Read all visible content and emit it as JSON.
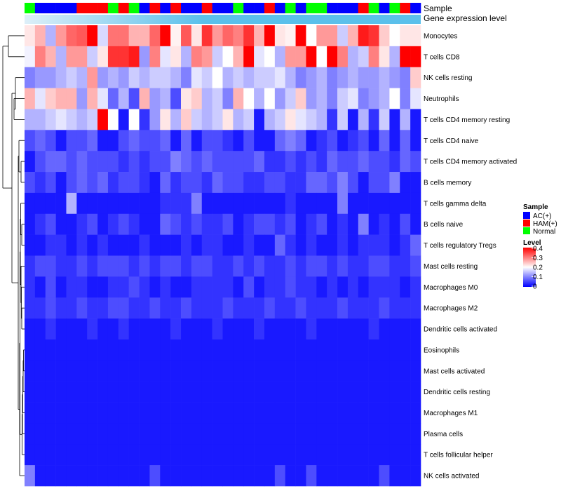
{
  "chart_data": {
    "type": "heatmap",
    "title": "",
    "column_annotations": [
      {
        "label": "Sample"
      },
      {
        "label": "Gene expression level"
      }
    ],
    "sample_groups": [
      {
        "name": "AC(+)",
        "color": "#0000FF"
      },
      {
        "name": "HAM(+)",
        "color": "#FF0000"
      },
      {
        "name": "Normal",
        "color": "#00FF00"
      }
    ],
    "sample_annotation": [
      "Normal",
      "AC(+)",
      "AC(+)",
      "AC(+)",
      "AC(+)",
      "HAM(+)",
      "HAM(+)",
      "HAM(+)",
      "Normal",
      "HAM(+)",
      "Normal",
      "AC(+)",
      "HAM(+)",
      "AC(+)",
      "HAM(+)",
      "AC(+)",
      "AC(+)",
      "HAM(+)",
      "AC(+)",
      "AC(+)",
      "Normal",
      "AC(+)",
      "AC(+)",
      "HAM(+)",
      "AC(+)",
      "Normal",
      "AC(+)",
      "Normal",
      "Normal",
      "AC(+)",
      "AC(+)",
      "AC(+)",
      "HAM(+)",
      "Normal",
      "AC(+)",
      "Normal",
      "HAM(+)",
      "AC(+)"
    ],
    "expression_level_color": "#5BC0EB",
    "expression_level_gradient_start": "#DDEFF8",
    "rows": [
      "Monocytes",
      "T cells CD8",
      "NK cells resting",
      "Neutrophils",
      "T cells CD4 memory resting",
      "T cells CD4 naive",
      "T cells CD4 memory activated",
      "B cells memory",
      "T cells gamma delta",
      "B cells naive",
      "T cells regulatory  Tregs",
      "Mast cells resting",
      "Macrophages M0",
      "Macrophages M2",
      "Dendritic cells activated",
      "Eosinophils",
      "Mast cells activated",
      "Dendritic cells resting",
      "Macrophages M1",
      "Plasma cells",
      "T cells follicular helper",
      "NK cells activated"
    ],
    "values": [
      [
        0.22,
        0.26,
        0.14,
        0.28,
        0.32,
        0.33,
        0.4,
        0.17,
        0.31,
        0.31,
        0.26,
        0.26,
        0.32,
        0.4,
        0.21,
        0.33,
        0.22,
        0.36,
        0.28,
        0.32,
        0.3,
        0.36,
        0.26,
        0.42,
        0.22,
        0.21,
        0.4,
        0.2,
        0.28,
        0.28,
        0.16,
        0.26,
        0.38,
        0.36,
        0.24,
        0.2,
        0.22,
        0.22
      ],
      [
        0.19,
        0.3,
        0.26,
        0.14,
        0.28,
        0.28,
        0.16,
        0.22,
        0.36,
        0.36,
        0.38,
        0.12,
        0.3,
        0.18,
        0.22,
        0.14,
        0.3,
        0.28,
        0.16,
        0.2,
        0.26,
        0.4,
        0.18,
        0.2,
        0.14,
        0.28,
        0.28,
        0.4,
        0.2,
        0.42,
        0.3,
        0.14,
        0.16,
        0.3,
        0.22,
        0.14,
        0.42,
        0.42
      ],
      [
        0.1,
        0.12,
        0.12,
        0.14,
        0.16,
        0.14,
        0.28,
        0.12,
        0.14,
        0.12,
        0.16,
        0.14,
        0.16,
        0.16,
        0.14,
        0.1,
        0.18,
        0.16,
        0.2,
        0.14,
        0.16,
        0.14,
        0.16,
        0.16,
        0.18,
        0.14,
        0.1,
        0.12,
        0.14,
        0.1,
        0.12,
        0.14,
        0.12,
        0.12,
        0.14,
        0.12,
        0.1,
        0.24
      ],
      [
        0.26,
        0.18,
        0.24,
        0.26,
        0.26,
        0.12,
        0.26,
        0.18,
        0.08,
        0.14,
        0.06,
        0.26,
        0.12,
        0.14,
        0.06,
        0.22,
        0.24,
        0.14,
        0.16,
        0.1,
        0.26,
        0.2,
        0.14,
        0.2,
        0.12,
        0.16,
        0.24,
        0.12,
        0.14,
        0.1,
        0.16,
        0.18,
        0.1,
        0.12,
        0.14,
        0.2,
        0.1,
        0.18
      ],
      [
        0.14,
        0.14,
        0.16,
        0.18,
        0.16,
        0.14,
        0.16,
        0.4,
        0.2,
        0.02,
        0.2,
        0.04,
        0.12,
        0.22,
        0.14,
        0.24,
        0.16,
        0.14,
        0.16,
        0.22,
        0.14,
        0.16,
        0.02,
        0.14,
        0.16,
        0.22,
        0.18,
        0.16,
        0.14,
        0.04,
        0.16,
        0.02,
        0.14,
        0.04,
        0.16,
        0.02,
        0.14,
        0.02
      ],
      [
        0.06,
        0.08,
        0.06,
        0.02,
        0.06,
        0.06,
        0.08,
        0.02,
        0.02,
        0.06,
        0.08,
        0.06,
        0.06,
        0.08,
        0.02,
        0.08,
        0.02,
        0.06,
        0.06,
        0.04,
        0.02,
        0.06,
        0.02,
        0.02,
        0.08,
        0.1,
        0.08,
        0.02,
        0.04,
        0.06,
        0.02,
        0.04,
        0.06,
        0.02,
        0.08,
        0.02,
        0.08,
        0.02
      ],
      [
        0.02,
        0.06,
        0.08,
        0.08,
        0.06,
        0.08,
        0.06,
        0.06,
        0.06,
        0.04,
        0.06,
        0.04,
        0.06,
        0.06,
        0.1,
        0.08,
        0.06,
        0.08,
        0.06,
        0.06,
        0.06,
        0.06,
        0.08,
        0.04,
        0.04,
        0.06,
        0.04,
        0.06,
        0.04,
        0.08,
        0.06,
        0.06,
        0.08,
        0.06,
        0.06,
        0.04,
        0.08,
        0.06
      ],
      [
        0.06,
        0.04,
        0.06,
        0.02,
        0.06,
        0.08,
        0.06,
        0.08,
        0.04,
        0.06,
        0.06,
        0.04,
        0.02,
        0.08,
        0.04,
        0.06,
        0.06,
        0.04,
        0.08,
        0.06,
        0.06,
        0.04,
        0.04,
        0.06,
        0.06,
        0.04,
        0.04,
        0.08,
        0.08,
        0.06,
        0.1,
        0.06,
        0.02,
        0.06,
        0.06,
        0.1,
        0.02,
        0.02
      ],
      [
        0.02,
        0.02,
        0.02,
        0.02,
        0.14,
        0.02,
        0.02,
        0.02,
        0.02,
        0.02,
        0.02,
        0.02,
        0.02,
        0.04,
        0.04,
        0.04,
        0.1,
        0.02,
        0.02,
        0.02,
        0.02,
        0.02,
        0.02,
        0.02,
        0.02,
        0.04,
        0.02,
        0.02,
        0.02,
        0.02,
        0.1,
        0.02,
        0.02,
        0.02,
        0.02,
        0.02,
        0.02,
        0.02
      ],
      [
        0.02,
        0.04,
        0.06,
        0.02,
        0.02,
        0.04,
        0.06,
        0.02,
        0.04,
        0.06,
        0.04,
        0.02,
        0.02,
        0.08,
        0.06,
        0.04,
        0.06,
        0.04,
        0.04,
        0.06,
        0.02,
        0.04,
        0.06,
        0.06,
        0.04,
        0.06,
        0.02,
        0.04,
        0.06,
        0.02,
        0.04,
        0.02,
        0.1,
        0.02,
        0.04,
        0.02,
        0.06,
        0.02
      ],
      [
        0.02,
        0.02,
        0.04,
        0.04,
        0.02,
        0.04,
        0.02,
        0.04,
        0.02,
        0.02,
        0.02,
        0.04,
        0.02,
        0.02,
        0.02,
        0.04,
        0.02,
        0.04,
        0.04,
        0.02,
        0.02,
        0.04,
        0.02,
        0.02,
        0.08,
        0.04,
        0.02,
        0.04,
        0.02,
        0.02,
        0.04,
        0.02,
        0.04,
        0.04,
        0.04,
        0.02,
        0.04,
        0.08
      ],
      [
        0.04,
        0.06,
        0.06,
        0.04,
        0.04,
        0.06,
        0.04,
        0.06,
        0.06,
        0.06,
        0.04,
        0.06,
        0.04,
        0.06,
        0.06,
        0.04,
        0.06,
        0.06,
        0.04,
        0.04,
        0.06,
        0.04,
        0.06,
        0.04,
        0.04,
        0.06,
        0.04,
        0.06,
        0.06,
        0.04,
        0.06,
        0.04,
        0.04,
        0.06,
        0.06,
        0.04,
        0.04,
        0.06
      ],
      [
        0.04,
        0.02,
        0.06,
        0.02,
        0.04,
        0.04,
        0.02,
        0.02,
        0.04,
        0.04,
        0.06,
        0.04,
        0.02,
        0.04,
        0.02,
        0.02,
        0.04,
        0.04,
        0.04,
        0.04,
        0.02,
        0.06,
        0.02,
        0.04,
        0.04,
        0.06,
        0.04,
        0.04,
        0.02,
        0.04,
        0.02,
        0.04,
        0.02,
        0.04,
        0.04,
        0.04,
        0.02,
        0.04
      ],
      [
        0.04,
        0.04,
        0.06,
        0.04,
        0.04,
        0.06,
        0.04,
        0.04,
        0.06,
        0.06,
        0.04,
        0.04,
        0.06,
        0.04,
        0.04,
        0.06,
        0.04,
        0.04,
        0.04,
        0.06,
        0.04,
        0.04,
        0.04,
        0.06,
        0.04,
        0.04,
        0.06,
        0.04,
        0.04,
        0.04,
        0.06,
        0.04,
        0.04,
        0.04,
        0.06,
        0.04,
        0.04,
        0.04
      ],
      [
        0.02,
        0.02,
        0.04,
        0.02,
        0.02,
        0.02,
        0.04,
        0.02,
        0.02,
        0.04,
        0.02,
        0.02,
        0.02,
        0.02,
        0.04,
        0.02,
        0.02,
        0.02,
        0.04,
        0.02,
        0.02,
        0.02,
        0.04,
        0.02,
        0.02,
        0.02,
        0.02,
        0.04,
        0.02,
        0.02,
        0.02,
        0.02,
        0.02,
        0.04,
        0.02,
        0.02,
        0.02,
        0.02
      ],
      [
        0.02,
        0.02,
        0.02,
        0.02,
        0.02,
        0.02,
        0.02,
        0.02,
        0.02,
        0.02,
        0.02,
        0.02,
        0.02,
        0.02,
        0.02,
        0.02,
        0.02,
        0.02,
        0.02,
        0.02,
        0.02,
        0.02,
        0.02,
        0.02,
        0.02,
        0.02,
        0.02,
        0.02,
        0.02,
        0.02,
        0.02,
        0.02,
        0.02,
        0.02,
        0.02,
        0.02,
        0.02,
        0.02
      ],
      [
        0.02,
        0.02,
        0.02,
        0.02,
        0.02,
        0.02,
        0.02,
        0.02,
        0.02,
        0.02,
        0.02,
        0.02,
        0.02,
        0.02,
        0.02,
        0.02,
        0.02,
        0.02,
        0.02,
        0.02,
        0.02,
        0.02,
        0.02,
        0.02,
        0.02,
        0.02,
        0.02,
        0.02,
        0.02,
        0.02,
        0.02,
        0.02,
        0.02,
        0.02,
        0.02,
        0.02,
        0.02,
        0.02
      ],
      [
        0.02,
        0.02,
        0.02,
        0.02,
        0.02,
        0.02,
        0.02,
        0.02,
        0.02,
        0.02,
        0.02,
        0.02,
        0.02,
        0.02,
        0.02,
        0.02,
        0.02,
        0.02,
        0.02,
        0.02,
        0.02,
        0.02,
        0.02,
        0.02,
        0.02,
        0.02,
        0.02,
        0.02,
        0.02,
        0.02,
        0.02,
        0.02,
        0.02,
        0.02,
        0.02,
        0.02,
        0.02,
        0.02
      ],
      [
        0.02,
        0.02,
        0.02,
        0.02,
        0.02,
        0.02,
        0.02,
        0.02,
        0.02,
        0.02,
        0.02,
        0.02,
        0.02,
        0.02,
        0.02,
        0.02,
        0.02,
        0.02,
        0.02,
        0.02,
        0.02,
        0.02,
        0.02,
        0.02,
        0.02,
        0.02,
        0.02,
        0.02,
        0.02,
        0.02,
        0.02,
        0.02,
        0.02,
        0.02,
        0.02,
        0.02,
        0.02,
        0.02
      ],
      [
        0.02,
        0.02,
        0.02,
        0.02,
        0.02,
        0.02,
        0.02,
        0.02,
        0.02,
        0.02,
        0.02,
        0.02,
        0.02,
        0.02,
        0.02,
        0.02,
        0.02,
        0.02,
        0.02,
        0.02,
        0.02,
        0.02,
        0.02,
        0.02,
        0.02,
        0.02,
        0.02,
        0.02,
        0.02,
        0.02,
        0.02,
        0.02,
        0.02,
        0.02,
        0.02,
        0.02,
        0.02,
        0.02
      ],
      [
        0.02,
        0.02,
        0.02,
        0.02,
        0.02,
        0.02,
        0.02,
        0.02,
        0.02,
        0.02,
        0.02,
        0.02,
        0.02,
        0.02,
        0.02,
        0.02,
        0.02,
        0.02,
        0.02,
        0.02,
        0.02,
        0.02,
        0.02,
        0.02,
        0.02,
        0.02,
        0.02,
        0.02,
        0.02,
        0.02,
        0.02,
        0.02,
        0.02,
        0.02,
        0.02,
        0.02,
        0.02,
        0.02
      ],
      [
        0.1,
        0.02,
        0.02,
        0.02,
        0.02,
        0.02,
        0.02,
        0.02,
        0.02,
        0.02,
        0.02,
        0.02,
        0.06,
        0.02,
        0.02,
        0.02,
        0.02,
        0.02,
        0.02,
        0.02,
        0.02,
        0.02,
        0.02,
        0.02,
        0.06,
        0.02,
        0.02,
        0.06,
        0.02,
        0.02,
        0.02,
        0.02,
        0.02,
        0.02,
        0.06,
        0.02,
        0.02,
        0.02
      ]
    ],
    "color_scale": {
      "min": 0,
      "max": 0.4,
      "colors": [
        {
          "value": 0,
          "color": "#0000FF"
        },
        {
          "value": 0.2,
          "color": "#FFFFFF"
        },
        {
          "value": 0.4,
          "color": "#FF0000"
        }
      ]
    },
    "legend": {
      "sample_title": "Sample",
      "sample_entries": [
        "AC(+)",
        "HAM(+)",
        "Normal"
      ],
      "level_title": "Level",
      "level_ticks": [
        "0.4",
        "0.3",
        "0.2",
        "0.1",
        "0"
      ],
      "placement": "right"
    }
  }
}
